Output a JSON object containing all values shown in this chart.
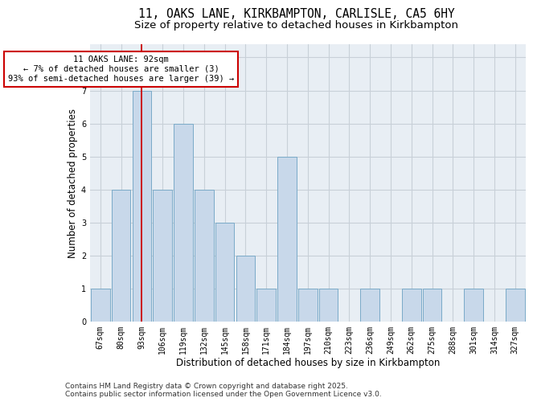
{
  "title1": "11, OAKS LANE, KIRKBAMPTON, CARLISLE, CA5 6HY",
  "title2": "Size of property relative to detached houses in Kirkbampton",
  "xlabel": "Distribution of detached houses by size in Kirkbampton",
  "ylabel": "Number of detached properties",
  "categories": [
    "67sqm",
    "80sqm",
    "93sqm",
    "106sqm",
    "119sqm",
    "132sqm",
    "145sqm",
    "158sqm",
    "171sqm",
    "184sqm",
    "197sqm",
    "210sqm",
    "223sqm",
    "236sqm",
    "249sqm",
    "262sqm",
    "275sqm",
    "288sqm",
    "301sqm",
    "314sqm",
    "327sqm"
  ],
  "values": [
    1,
    4,
    7,
    4,
    6,
    4,
    3,
    2,
    1,
    5,
    1,
    1,
    0,
    1,
    0,
    1,
    1,
    0,
    1,
    0,
    1
  ],
  "bar_color": "#c8d8ea",
  "bar_edge_color": "#7aaac8",
  "vline_index": 2,
  "vline_color": "#cc0000",
  "annotation_text": "11 OAKS LANE: 92sqm\n← 7% of detached houses are smaller (3)\n93% of semi-detached houses are larger (39) →",
  "annotation_box_color": "white",
  "annotation_box_edge_color": "#cc0000",
  "ylim": [
    0,
    8.4
  ],
  "yticks": [
    0,
    1,
    2,
    3,
    4,
    5,
    6,
    7,
    8
  ],
  "grid_color": "#c8d0d8",
  "background_color": "#e8eef4",
  "footer_text": "Contains HM Land Registry data © Crown copyright and database right 2025.\nContains public sector information licensed under the Open Government Licence v3.0.",
  "title_fontsize": 10.5,
  "subtitle_fontsize": 9.5,
  "xlabel_fontsize": 8.5,
  "ylabel_fontsize": 8.5,
  "tick_fontsize": 7,
  "annotation_fontsize": 7.5,
  "footer_fontsize": 6.5
}
